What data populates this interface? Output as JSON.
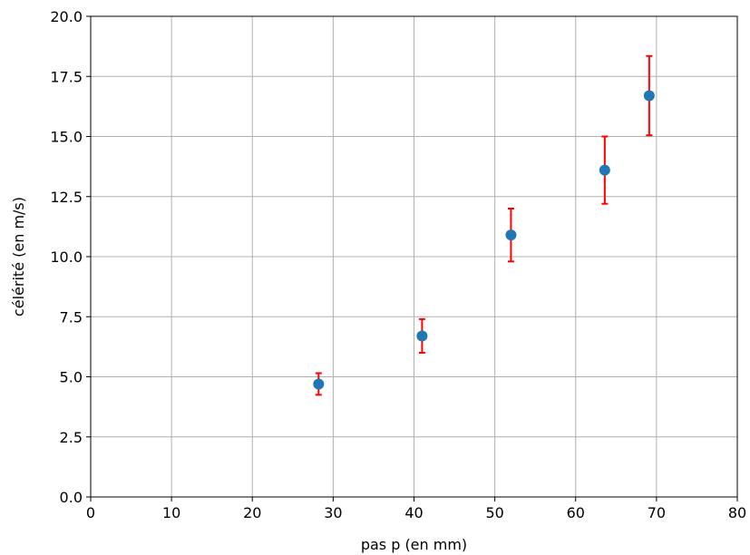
{
  "chart_data": {
    "type": "scatter",
    "title": "",
    "xlabel": "pas p (en mm)",
    "ylabel": "célérité (en m/s)",
    "xlim": [
      0,
      80
    ],
    "ylim": [
      0,
      20
    ],
    "x_ticks": [
      0,
      10,
      20,
      30,
      40,
      50,
      60,
      70,
      80
    ],
    "y_ticks": [
      0.0,
      2.5,
      5.0,
      7.5,
      10.0,
      12.5,
      15.0,
      17.5,
      20.0
    ],
    "x_tick_labels": [
      "0",
      "10",
      "20",
      "30",
      "40",
      "50",
      "60",
      "70",
      "80"
    ],
    "y_tick_labels": [
      "0.0",
      "2.5",
      "5.0",
      "7.5",
      "10.0",
      "12.5",
      "15.0",
      "17.5",
      "20.0"
    ],
    "grid": true,
    "series": [
      {
        "x": [
          28.2,
          41.0,
          52.0,
          63.6,
          69.1
        ],
        "y": [
          4.7,
          6.7,
          10.9,
          13.6,
          16.7
        ],
        "yerr": [
          0.45,
          0.7,
          1.1,
          1.4,
          1.65
        ],
        "marker_color": "#1f77b4",
        "errorbar_color": "#ff0000"
      }
    ]
  }
}
